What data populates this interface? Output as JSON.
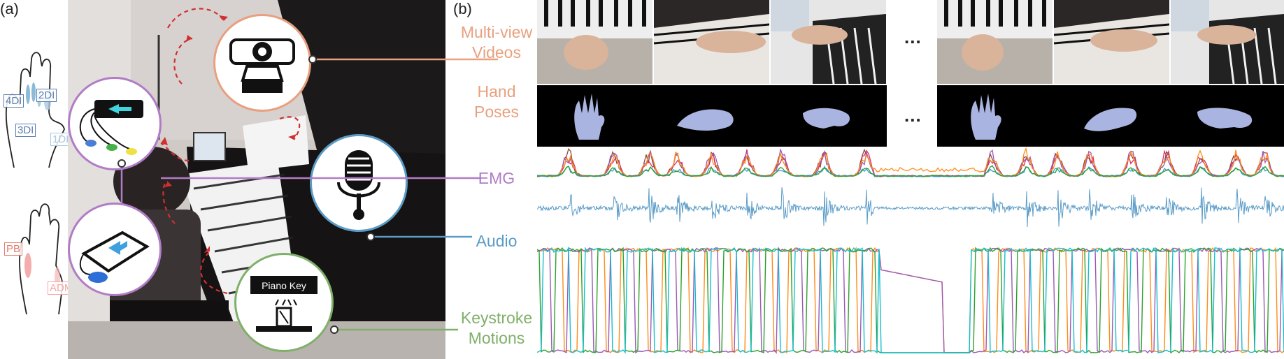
{
  "panels": {
    "a": "(a)",
    "b": "(b)"
  },
  "row_labels": {
    "videos": [
      "Multi-view",
      "Videos"
    ],
    "poses": [
      "Hand",
      "Poses"
    ],
    "emg": "EMG",
    "audio": "Audio",
    "keystroke": [
      "Keystroke",
      "Motions"
    ]
  },
  "muscle_labels": {
    "dorsal": [
      "4DI",
      "2DI",
      "3DI",
      "1DI"
    ],
    "palmar": [
      "PB",
      "ADM"
    ]
  },
  "piano_key_label": "Piano Key",
  "ellipsis": "...",
  "colors": {
    "videos": "#e8a07e",
    "poses": "#e8a07e",
    "emg": "#b07cc6",
    "audio": "#5b9cc7",
    "keystroke": "#7fb069",
    "arrow": "#d03030"
  }
}
